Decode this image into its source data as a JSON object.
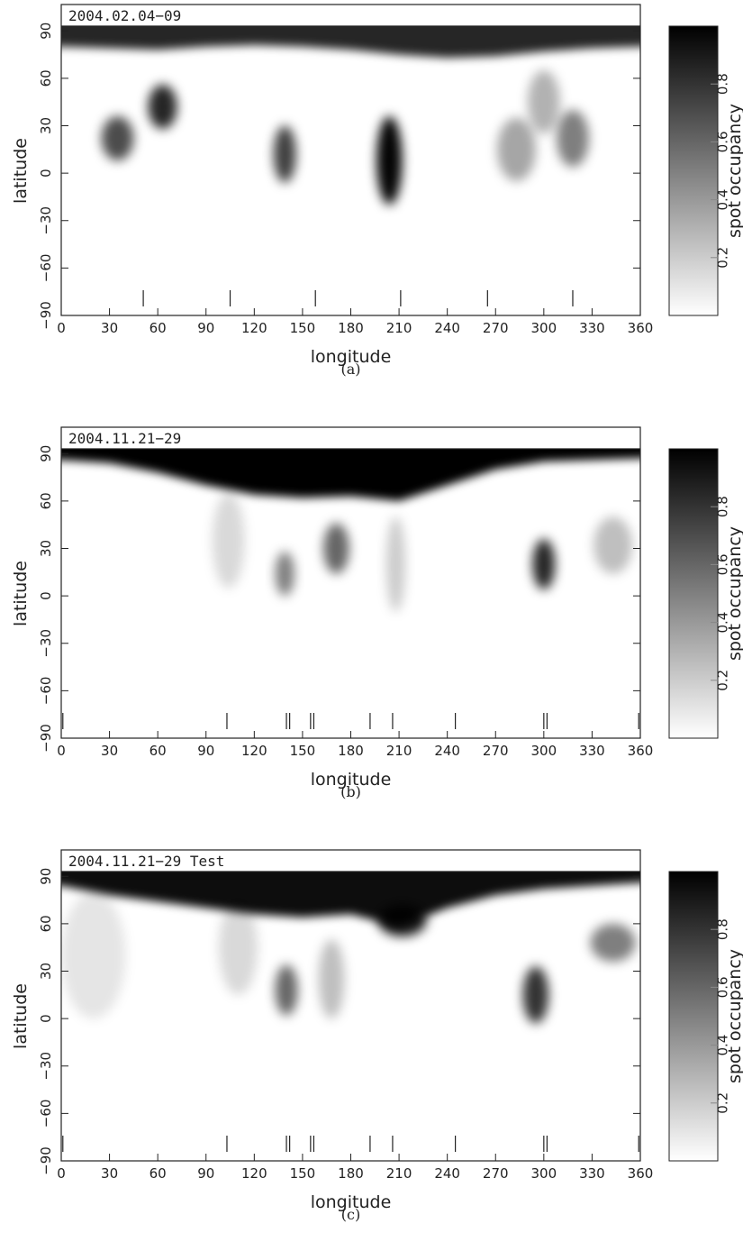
{
  "chart_data": [
    {
      "type": "heatmap",
      "title": "2004.02.04−09",
      "caption": "(a)",
      "xlabel": "longitude",
      "ylabel": "latitude",
      "colorbar_label": "spot occupancy",
      "xlim": [
        0,
        360
      ],
      "ylim": [
        -90,
        93
      ],
      "clim": [
        0,
        1
      ],
      "colormap": [
        "#ffffff",
        "#000000"
      ],
      "xticks": [
        0,
        30,
        60,
        90,
        120,
        150,
        180,
        210,
        240,
        270,
        300,
        330,
        360
      ],
      "yticks": [
        {
          "value": -90,
          "label": "−90"
        },
        {
          "value": -60,
          "label": "−60"
        },
        {
          "value": -30,
          "label": "−30"
        },
        0,
        30,
        60,
        90
      ],
      "cticks": [
        0.2,
        0.4,
        0.6,
        0.8
      ],
      "cap": {
        "lon": [
          0,
          30,
          60,
          90,
          120,
          150,
          180,
          210,
          240,
          270,
          300,
          330,
          360
        ],
        "lat": [
          80,
          79,
          78,
          80,
          81,
          80,
          78,
          75,
          73,
          74,
          77,
          79,
          80
        ],
        "occupancy": 0.85
      },
      "spots": [
        {
          "lon": 35,
          "lat": 22,
          "rlon": 10,
          "rlat": 14,
          "occupancy": 0.7
        },
        {
          "lon": 63,
          "lat": 42,
          "rlon": 9,
          "rlat": 14,
          "occupancy": 0.85
        },
        {
          "lon": 139,
          "lat": 12,
          "rlon": 7,
          "rlat": 18,
          "occupancy": 0.75
        },
        {
          "lon": 204,
          "lat": 8,
          "rlon": 8,
          "rlat": 28,
          "occupancy": 0.98
        },
        {
          "lon": 283,
          "lat": 15,
          "rlon": 12,
          "rlat": 20,
          "occupancy": 0.35
        },
        {
          "lon": 318,
          "lat": 22,
          "rlon": 10,
          "rlat": 18,
          "occupancy": 0.5
        },
        {
          "lon": 300,
          "lat": 45,
          "rlon": 10,
          "rlat": 20,
          "occupancy": 0.3
        }
      ],
      "phase_ticks": [
        51,
        105,
        158,
        211,
        265,
        318
      ]
    },
    {
      "type": "heatmap",
      "title": "2004.11.21−29",
      "caption": "(b)",
      "xlabel": "longitude",
      "ylabel": "latitude",
      "colorbar_label": "spot occupancy",
      "xlim": [
        0,
        360
      ],
      "ylim": [
        -90,
        93
      ],
      "clim": [
        0,
        1
      ],
      "colormap": [
        "#ffffff",
        "#000000"
      ],
      "xticks": [
        0,
        30,
        60,
        90,
        120,
        150,
        180,
        210,
        240,
        270,
        300,
        330,
        360
      ],
      "yticks": [
        {
          "value": -90,
          "label": "−90"
        },
        {
          "value": -60,
          "label": "−60"
        },
        {
          "value": -30,
          "label": "−30"
        },
        0,
        30,
        60,
        90
      ],
      "cticks": [
        0.2,
        0.4,
        0.6,
        0.8
      ],
      "cap": {
        "lon": [
          0,
          30,
          60,
          90,
          120,
          150,
          180,
          210,
          240,
          270,
          300,
          330,
          360
        ],
        "lat": [
          86,
          84,
          78,
          70,
          64,
          62,
          63,
          60,
          70,
          80,
          85,
          86,
          87
        ],
        "occupancy": 1
      },
      "spots": [
        {
          "lon": 104,
          "lat": 35,
          "rlon": 10,
          "rlat": 30,
          "occupancy": 0.15
        },
        {
          "lon": 139,
          "lat": 14,
          "rlon": 6,
          "rlat": 14,
          "occupancy": 0.5
        },
        {
          "lon": 171,
          "lat": 30,
          "rlon": 8,
          "rlat": 16,
          "occupancy": 0.6
        },
        {
          "lon": 208,
          "lat": 20,
          "rlon": 6,
          "rlat": 30,
          "occupancy": 0.2
        },
        {
          "lon": 300,
          "lat": 20,
          "rlon": 7,
          "rlat": 16,
          "occupancy": 0.85
        },
        {
          "lon": 343,
          "lat": 32,
          "rlon": 12,
          "rlat": 18,
          "occupancy": 0.25
        }
      ],
      "phase_ticks": [
        1,
        103,
        140,
        142,
        155,
        157,
        192,
        206,
        245,
        300,
        302,
        359
      ]
    },
    {
      "type": "heatmap",
      "title": "2004.11.21−29  Test",
      "caption": "(c)",
      "xlabel": "longitude",
      "ylabel": "latitude",
      "colorbar_label": "spot occupancy",
      "xlim": [
        0,
        360
      ],
      "ylim": [
        -90,
        93
      ],
      "clim": [
        0,
        1
      ],
      "colormap": [
        "#ffffff",
        "#000000"
      ],
      "xticks": [
        0,
        30,
        60,
        90,
        120,
        150,
        180,
        210,
        240,
        270,
        300,
        330,
        360
      ],
      "yticks": [
        {
          "value": -90,
          "label": "−90"
        },
        {
          "value": -60,
          "label": "−60"
        },
        {
          "value": -30,
          "label": "−30"
        },
        0,
        30,
        60,
        90
      ],
      "cticks": [
        0.2,
        0.4,
        0.6,
        0.8
      ],
      "cap": {
        "lon": [
          0,
          30,
          60,
          90,
          120,
          150,
          180,
          210,
          240,
          270,
          300,
          330,
          360
        ],
        "lat": [
          84,
          78,
          74,
          70,
          66,
          64,
          66,
          58,
          70,
          78,
          82,
          84,
          86
        ],
        "occupancy": 0.95
      },
      "spots": [
        {
          "lon": 20,
          "lat": 40,
          "rlon": 20,
          "rlat": 40,
          "occupancy": 0.1
        },
        {
          "lon": 110,
          "lat": 45,
          "rlon": 12,
          "rlat": 30,
          "occupancy": 0.15
        },
        {
          "lon": 140,
          "lat": 18,
          "rlon": 7,
          "rlat": 16,
          "occupancy": 0.6
        },
        {
          "lon": 168,
          "lat": 25,
          "rlon": 8,
          "rlat": 25,
          "occupancy": 0.25
        },
        {
          "lon": 295,
          "lat": 15,
          "rlon": 8,
          "rlat": 18,
          "occupancy": 0.8
        },
        {
          "lon": 343,
          "lat": 48,
          "rlon": 14,
          "rlat": 12,
          "occupancy": 0.5
        },
        {
          "lon": 212,
          "lat": 62,
          "rlon": 15,
          "rlat": 10,
          "occupancy": 0.9
        }
      ],
      "phase_ticks": [
        1,
        103,
        140,
        142,
        155,
        157,
        192,
        206,
        245,
        300,
        302,
        359
      ]
    }
  ]
}
